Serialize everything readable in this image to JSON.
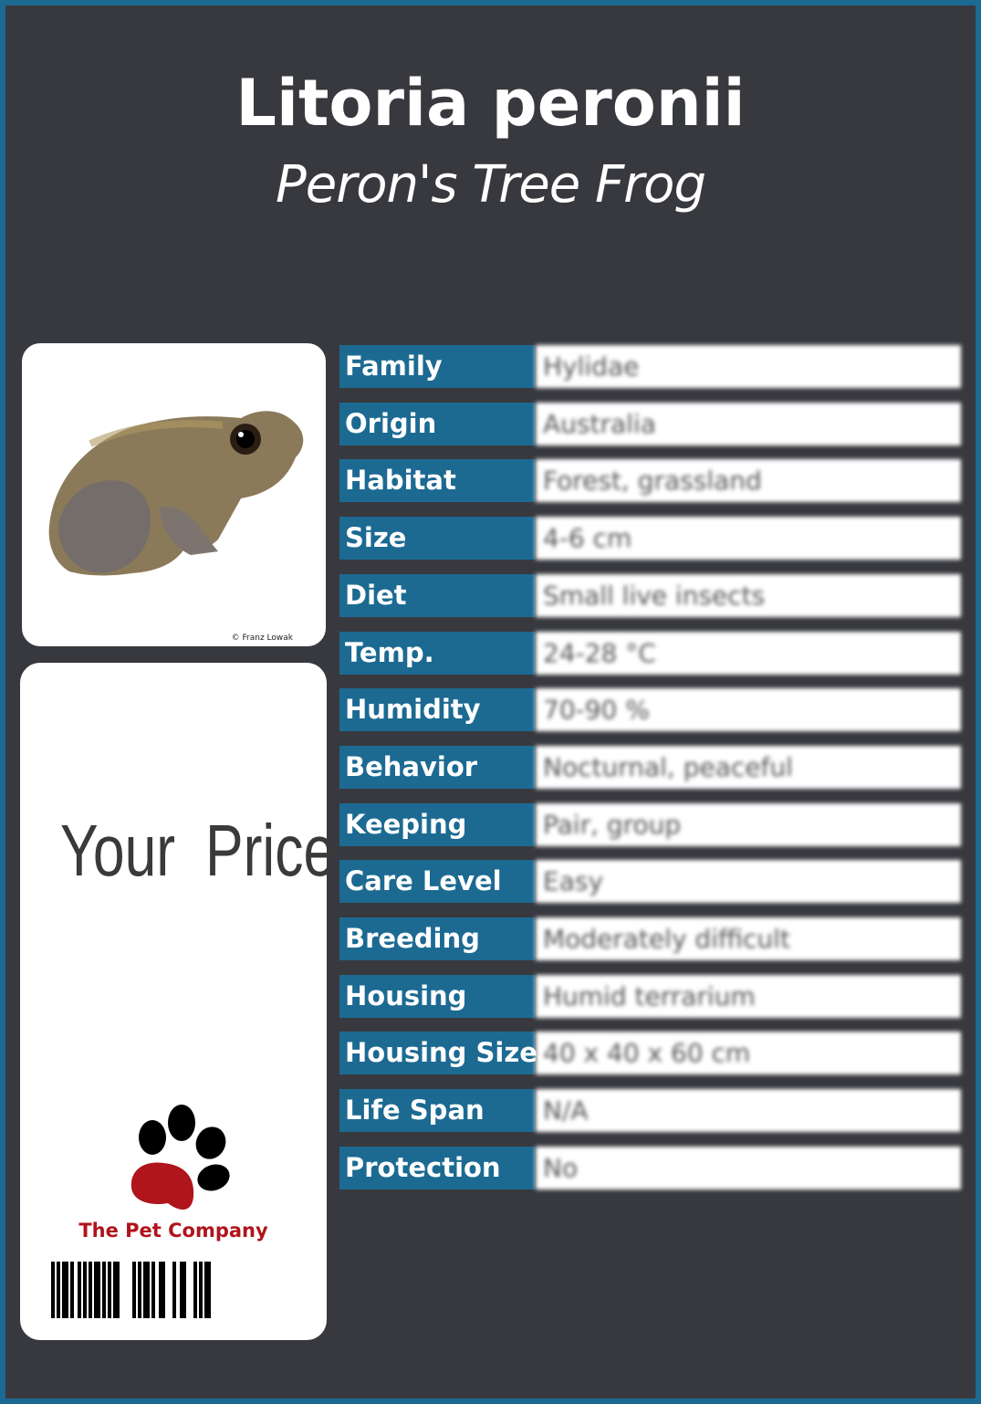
{
  "title": "Litoria peronii",
  "subtitle": "Peron's Tree Frog",
  "photo": {
    "credit": "© Franz Lowak",
    "subject": "frog"
  },
  "price": {
    "label": "Your Price"
  },
  "brand": {
    "name": "The Pet Company",
    "logo": "paw-icon",
    "colors": {
      "paw": "#b0141c",
      "toes": "#000000"
    }
  },
  "colors": {
    "accent": "#1c6a92",
    "background": "#38393e"
  },
  "facts": [
    {
      "label": "Family",
      "value": "Hylidae"
    },
    {
      "label": "Origin",
      "value": "Australia"
    },
    {
      "label": "Habitat",
      "value": "Forest, grassland"
    },
    {
      "label": "Size",
      "value": "4-6 cm"
    },
    {
      "label": "Diet",
      "value": "Small live insects"
    },
    {
      "label": "Temp.",
      "value": "24-28 °C"
    },
    {
      "label": "Humidity",
      "value": "70-90 %"
    },
    {
      "label": "Behavior",
      "value": "Nocturnal, peaceful"
    },
    {
      "label": "Keeping",
      "value": "Pair, group"
    },
    {
      "label": "Care Level",
      "value": "Easy"
    },
    {
      "label": "Breeding",
      "value": "Moderately difficult"
    },
    {
      "label": "Housing",
      "value": "Humid terrarium"
    },
    {
      "label": "Housing Size",
      "value": "40 x 40 x 60 cm"
    },
    {
      "label": "Life Span",
      "value": "N/A"
    },
    {
      "label": "Protection",
      "value": "No"
    }
  ]
}
